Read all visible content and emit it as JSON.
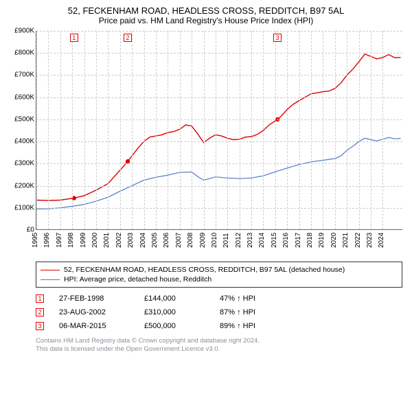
{
  "title_line1": "52, FECKENHAM ROAD, HEADLESS CROSS, REDDITCH, B97 5AL",
  "title_line2": "Price paid vs. HM Land Registry's House Price Index (HPI)",
  "chart": {
    "type": "line",
    "background_color": "#ffffff",
    "grid_color": "#cccccc",
    "ylim": [
      0,
      900
    ],
    "ytick_step": 100,
    "y_tick_labels": [
      "£0",
      "£100K",
      "£200K",
      "£300K",
      "£400K",
      "£500K",
      "£600K",
      "£700K",
      "£800K",
      "£900K"
    ],
    "xmin": 1995,
    "xmax": 2025.7,
    "x_tick_step": 1,
    "x_tick_labels": [
      "1995",
      "1996",
      "1997",
      "1998",
      "1999",
      "2000",
      "2001",
      "2002",
      "2003",
      "2004",
      "2005",
      "2006",
      "2007",
      "2008",
      "2009",
      "2010",
      "2011",
      "2012",
      "2013",
      "2014",
      "2015",
      "2016",
      "2017",
      "2018",
      "2019",
      "2020",
      "2021",
      "2022",
      "2023",
      "2024"
    ],
    "label_fontsize": 10,
    "series_property": {
      "color": "#e00000",
      "line_width": 1.4,
      "points": [
        [
          1995,
          135
        ],
        [
          1996,
          133
        ],
        [
          1997,
          135
        ],
        [
          1998.15,
          144
        ],
        [
          1999,
          155
        ],
        [
          2000,
          180
        ],
        [
          2001,
          210
        ],
        [
          2002,
          270
        ],
        [
          2002.65,
          310
        ],
        [
          2003,
          335
        ],
        [
          2003.5,
          370
        ],
        [
          2004,
          400
        ],
        [
          2004.5,
          420
        ],
        [
          2005,
          425
        ],
        [
          2005.5,
          430
        ],
        [
          2006,
          440
        ],
        [
          2006.5,
          445
        ],
        [
          2007,
          455
        ],
        [
          2007.5,
          475
        ],
        [
          2008,
          470
        ],
        [
          2008.5,
          435
        ],
        [
          2009,
          395
        ],
        [
          2009.5,
          415
        ],
        [
          2010,
          430
        ],
        [
          2010.5,
          425
        ],
        [
          2011,
          415
        ],
        [
          2011.5,
          408
        ],
        [
          2012,
          410
        ],
        [
          2012.5,
          420
        ],
        [
          2013,
          422
        ],
        [
          2013.5,
          432
        ],
        [
          2014,
          450
        ],
        [
          2014.5,
          475
        ],
        [
          2015.18,
          500
        ],
        [
          2015.5,
          515
        ],
        [
          2016,
          545
        ],
        [
          2016.5,
          568
        ],
        [
          2017,
          585
        ],
        [
          2017.5,
          600
        ],
        [
          2018,
          616
        ],
        [
          2018.5,
          620
        ],
        [
          2019,
          625
        ],
        [
          2019.5,
          628
        ],
        [
          2020,
          640
        ],
        [
          2020.5,
          665
        ],
        [
          2021,
          700
        ],
        [
          2021.5,
          727
        ],
        [
          2022,
          760
        ],
        [
          2022.5,
          795
        ],
        [
          2023,
          785
        ],
        [
          2023.5,
          773
        ],
        [
          2024,
          780
        ],
        [
          2024.5,
          793
        ],
        [
          2025,
          779
        ],
        [
          2025.5,
          780
        ]
      ]
    },
    "series_hpi": {
      "color": "#5078c8",
      "line_width": 1.2,
      "points": [
        [
          1995,
          95
        ],
        [
          1996,
          96
        ],
        [
          1997,
          100
        ],
        [
          1998,
          107
        ],
        [
          1999,
          115
        ],
        [
          2000,
          130
        ],
        [
          2001,
          148
        ],
        [
          2002,
          175
        ],
        [
          2003,
          200
        ],
        [
          2004,
          225
        ],
        [
          2005,
          238
        ],
        [
          2006,
          248
        ],
        [
          2007,
          260
        ],
        [
          2008,
          262
        ],
        [
          2008.5,
          242
        ],
        [
          2009,
          225
        ],
        [
          2009.5,
          232
        ],
        [
          2010,
          240
        ],
        [
          2011,
          235
        ],
        [
          2012,
          232
        ],
        [
          2013,
          235
        ],
        [
          2014,
          245
        ],
        [
          2015,
          263
        ],
        [
          2016,
          280
        ],
        [
          2017,
          296
        ],
        [
          2018,
          308
        ],
        [
          2019,
          315
        ],
        [
          2020,
          323
        ],
        [
          2020.5,
          335
        ],
        [
          2021,
          360
        ],
        [
          2021.5,
          378
        ],
        [
          2022,
          400
        ],
        [
          2022.5,
          415
        ],
        [
          2023,
          408
        ],
        [
          2023.5,
          403
        ],
        [
          2024,
          410
        ],
        [
          2024.5,
          418
        ],
        [
          2025,
          412
        ],
        [
          2025.5,
          414
        ]
      ]
    },
    "sale_markers": [
      {
        "n": "1",
        "year": 1998.15,
        "price": 144
      },
      {
        "n": "2",
        "year": 2002.65,
        "price": 310
      },
      {
        "n": "3",
        "year": 2015.18,
        "price": 500
      }
    ]
  },
  "legend": {
    "items": [
      {
        "color": "#e00000",
        "label": "52, FECKENHAM ROAD, HEADLESS CROSS, REDDITCH, B97 5AL (detached house)"
      },
      {
        "color": "#5078c8",
        "label": "HPI: Average price, detached house, Redditch"
      }
    ]
  },
  "events": [
    {
      "n": "1",
      "date": "27-FEB-1998",
      "price": "£144,000",
      "pct": "47% ↑ HPI"
    },
    {
      "n": "2",
      "date": "23-AUG-2002",
      "price": "£310,000",
      "pct": "87% ↑ HPI"
    },
    {
      "n": "3",
      "date": "06-MAR-2015",
      "price": "£500,000",
      "pct": "89% ↑ HPI"
    }
  ],
  "footer_line1": "Contains HM Land Registry data © Crown copyright and database right 2024.",
  "footer_line2": "This data is licensed under the Open Government Licence v3.0."
}
